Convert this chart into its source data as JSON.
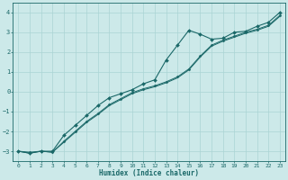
{
  "title": "",
  "xlabel": "Humidex (Indice chaleur)",
  "ylabel": "",
  "background_color": "#cce9e9",
  "grid_color": "#aad4d4",
  "line_color": "#1a6868",
  "xlim": [
    -0.5,
    23.5
  ],
  "ylim": [
    -3.5,
    4.5
  ],
  "yticks": [
    -3,
    -2,
    -1,
    0,
    1,
    2,
    3,
    4
  ],
  "xticks": [
    0,
    1,
    2,
    3,
    4,
    5,
    6,
    7,
    8,
    9,
    10,
    11,
    12,
    13,
    14,
    15,
    16,
    17,
    18,
    19,
    20,
    21,
    22,
    23
  ],
  "line1_x": [
    0,
    1,
    2,
    3,
    4,
    5,
    6,
    7,
    8,
    9,
    10,
    11,
    12,
    13,
    14,
    15,
    16,
    17,
    18,
    19,
    20,
    21,
    22,
    23
  ],
  "line1_y": [
    -3.0,
    -3.05,
    -3.0,
    -3.05,
    -2.5,
    -2.0,
    -1.5,
    -1.1,
    -0.65,
    -0.35,
    -0.05,
    0.15,
    0.3,
    0.5,
    0.75,
    1.15,
    1.8,
    2.35,
    2.6,
    2.8,
    3.0,
    3.15,
    3.35,
    3.85
  ],
  "line2_x": [
    0,
    1,
    2,
    3,
    4,
    5,
    6,
    7,
    8,
    9,
    10,
    11,
    12,
    13,
    14,
    15,
    16,
    17,
    18,
    19,
    20,
    21,
    22,
    23
  ],
  "line2_y": [
    -3.0,
    -3.1,
    -3.0,
    -3.05,
    -2.55,
    -2.05,
    -1.55,
    -1.15,
    -0.7,
    -0.4,
    -0.1,
    0.1,
    0.25,
    0.45,
    0.7,
    1.1,
    1.75,
    2.3,
    2.55,
    2.75,
    2.95,
    3.1,
    3.3,
    3.8
  ],
  "line3_x": [
    0,
    1,
    2,
    3,
    4,
    5,
    6,
    7,
    8,
    9,
    10,
    11,
    12,
    13,
    14,
    15,
    16,
    17,
    18,
    19,
    20,
    21,
    22,
    23
  ],
  "line3_y": [
    -3.0,
    -3.1,
    -3.0,
    -3.0,
    -2.2,
    -1.7,
    -1.2,
    -0.7,
    -0.3,
    -0.1,
    0.1,
    0.4,
    0.6,
    1.6,
    2.35,
    3.1,
    2.9,
    2.65,
    2.7,
    3.0,
    3.05,
    3.3,
    3.5,
    4.0
  ]
}
